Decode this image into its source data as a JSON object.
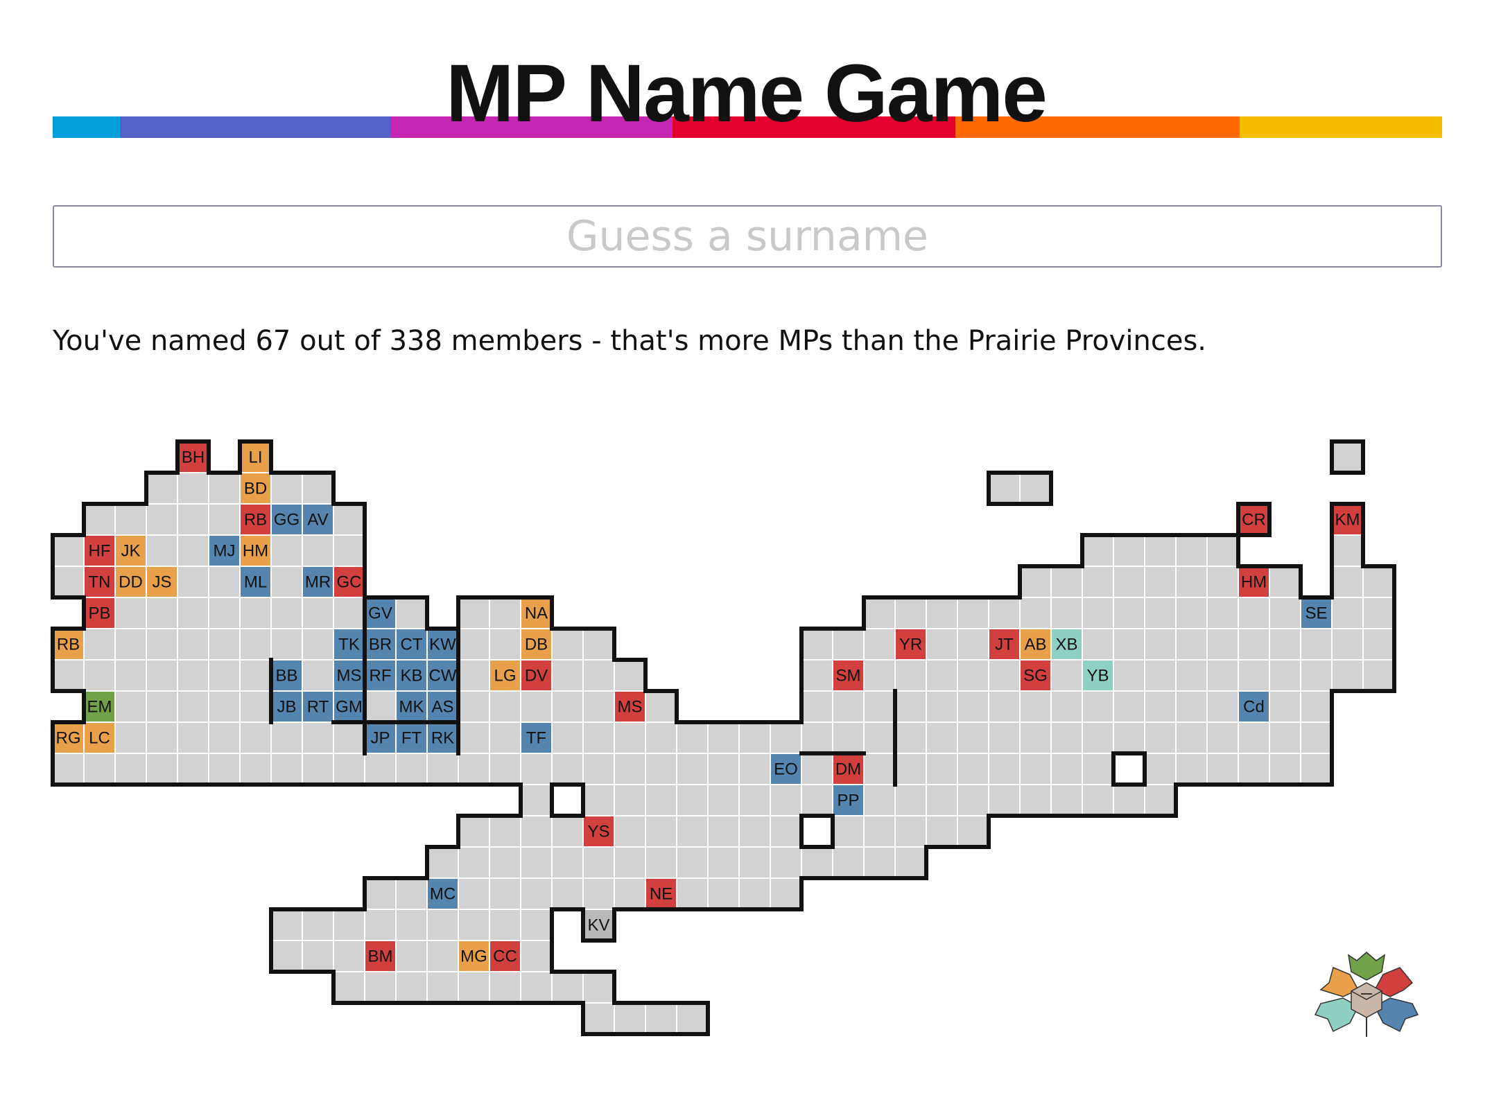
{
  "app": {
    "title": "MP Name Game"
  },
  "header": {
    "rainbow_colors": [
      "#049fdb",
      "#5462c7",
      "#c426b2",
      "#e4002e",
      "#ff6a00",
      "#f5bd02"
    ]
  },
  "search": {
    "placeholder": "Guess a surname",
    "value": ""
  },
  "status": {
    "named": 67,
    "total": 338,
    "message": "You've named 67 out of 338 members - that's more MPs than the Prairie Provinces."
  },
  "party_colors": {
    "red": "#d1403f",
    "orange": "#e8a14a",
    "blue": "#5585ae",
    "green": "#71a24a",
    "teal": "#8ed1c3",
    "grey": "#b9b9b9",
    "unknown": "#d2d2d2"
  },
  "named_members": [
    {
      "label": "BH",
      "party": "red"
    },
    {
      "label": "LI",
      "party": "orange"
    },
    {
      "label": "BD",
      "party": "orange"
    },
    {
      "label": "RB",
      "party": "red"
    },
    {
      "label": "GG",
      "party": "blue"
    },
    {
      "label": "AV",
      "party": "blue"
    },
    {
      "label": "HF",
      "party": "red"
    },
    {
      "label": "JK",
      "party": "orange"
    },
    {
      "label": "MJ",
      "party": "blue"
    },
    {
      "label": "HM",
      "party": "orange"
    },
    {
      "label": "TN",
      "party": "red"
    },
    {
      "label": "DD",
      "party": "orange"
    },
    {
      "label": "JS",
      "party": "orange"
    },
    {
      "label": "ML",
      "party": "blue"
    },
    {
      "label": "MR",
      "party": "blue"
    },
    {
      "label": "GC",
      "party": "red"
    },
    {
      "label": "PB",
      "party": "red"
    },
    {
      "label": "GV",
      "party": "blue"
    },
    {
      "label": "NA",
      "party": "orange"
    },
    {
      "label": "RB",
      "party": "orange"
    },
    {
      "label": "TK",
      "party": "blue"
    },
    {
      "label": "BR",
      "party": "blue"
    },
    {
      "label": "CT",
      "party": "blue"
    },
    {
      "label": "KW",
      "party": "blue"
    },
    {
      "label": "DB",
      "party": "orange"
    },
    {
      "label": "BB",
      "party": "blue"
    },
    {
      "label": "MS",
      "party": "blue"
    },
    {
      "label": "RF",
      "party": "blue"
    },
    {
      "label": "KB",
      "party": "blue"
    },
    {
      "label": "CW",
      "party": "blue"
    },
    {
      "label": "LG",
      "party": "orange"
    },
    {
      "label": "DV",
      "party": "red"
    },
    {
      "label": "EM",
      "party": "green"
    },
    {
      "label": "JB",
      "party": "blue"
    },
    {
      "label": "RT",
      "party": "blue"
    },
    {
      "label": "GM",
      "party": "blue"
    },
    {
      "label": "MK",
      "party": "blue"
    },
    {
      "label": "AS",
      "party": "blue"
    },
    {
      "label": "MS",
      "party": "red"
    },
    {
      "label": "RG",
      "party": "orange"
    },
    {
      "label": "LC",
      "party": "orange"
    },
    {
      "label": "JP",
      "party": "blue"
    },
    {
      "label": "FT",
      "party": "blue"
    },
    {
      "label": "RK",
      "party": "blue"
    },
    {
      "label": "TF",
      "party": "blue"
    },
    {
      "label": "EO",
      "party": "blue"
    },
    {
      "label": "DM",
      "party": "red"
    },
    {
      "label": "PP",
      "party": "blue"
    },
    {
      "label": "YS",
      "party": "red"
    },
    {
      "label": "MC",
      "party": "blue"
    },
    {
      "label": "NE",
      "party": "red"
    },
    {
      "label": "KV",
      "party": "grey"
    },
    {
      "label": "BM",
      "party": "red"
    },
    {
      "label": "MG",
      "party": "orange"
    },
    {
      "label": "CC",
      "party": "red"
    },
    {
      "label": "YR",
      "party": "red"
    },
    {
      "label": "JT",
      "party": "red"
    },
    {
      "label": "AB",
      "party": "orange"
    },
    {
      "label": "XB",
      "party": "teal"
    },
    {
      "label": "SM",
      "party": "red"
    },
    {
      "label": "SG",
      "party": "red"
    },
    {
      "label": "YB",
      "party": "teal"
    },
    {
      "label": "CR",
      "party": "red"
    },
    {
      "label": "KM",
      "party": "red"
    },
    {
      "label": "HM",
      "party": "red"
    },
    {
      "label": "SE",
      "party": "blue"
    },
    {
      "label": "Cd",
      "party": "blue"
    }
  ],
  "logo": {
    "icon": "maple-leaf-cube-logo",
    "colors": [
      "#71a24a",
      "#e8a14a",
      "#d1403f",
      "#8ed1c3",
      "#5585ae",
      "#c8b6a8"
    ]
  }
}
